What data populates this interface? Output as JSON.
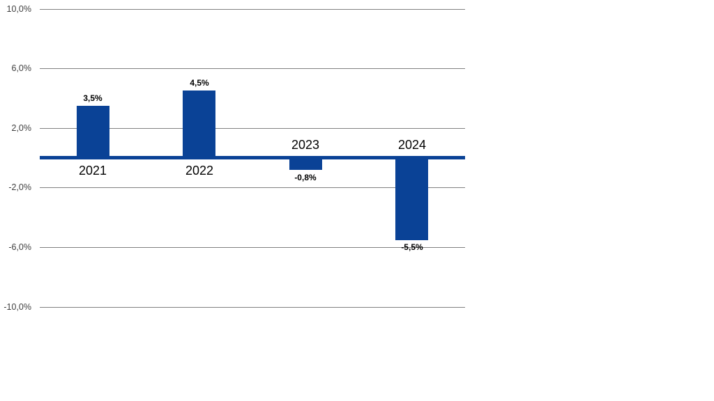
{
  "chart_data": {
    "type": "bar",
    "categories": [
      "2021",
      "2022",
      "2023",
      "2024"
    ],
    "values": [
      3.5,
      4.5,
      -0.8,
      -5.5
    ],
    "value_labels": [
      "3,5%",
      "4,5%",
      "-0,8%",
      "-5,5%"
    ],
    "y_ticks": [
      {
        "value": 10,
        "label": "10,0%"
      },
      {
        "value": 6,
        "label": "6,0%"
      },
      {
        "value": 2,
        "label": "2,0%"
      },
      {
        "value": -2,
        "label": "-2,0%"
      },
      {
        "value": -6,
        "label": "-6,0%"
      },
      {
        "value": -10,
        "label": "-10,0%"
      }
    ],
    "ylim": [
      -10,
      10
    ],
    "title": "",
    "xlabel": "",
    "ylabel": "",
    "grid": true,
    "legend_position": "none",
    "number_format": "comma-decimal-percent",
    "colors": {
      "bar": "#0a4296",
      "zero_line": "#0a4296",
      "gridline": "#808080",
      "tick_label": "#3f3f3f",
      "category_label": "#000000",
      "data_label": "#000000",
      "background": "#ffffff"
    }
  }
}
